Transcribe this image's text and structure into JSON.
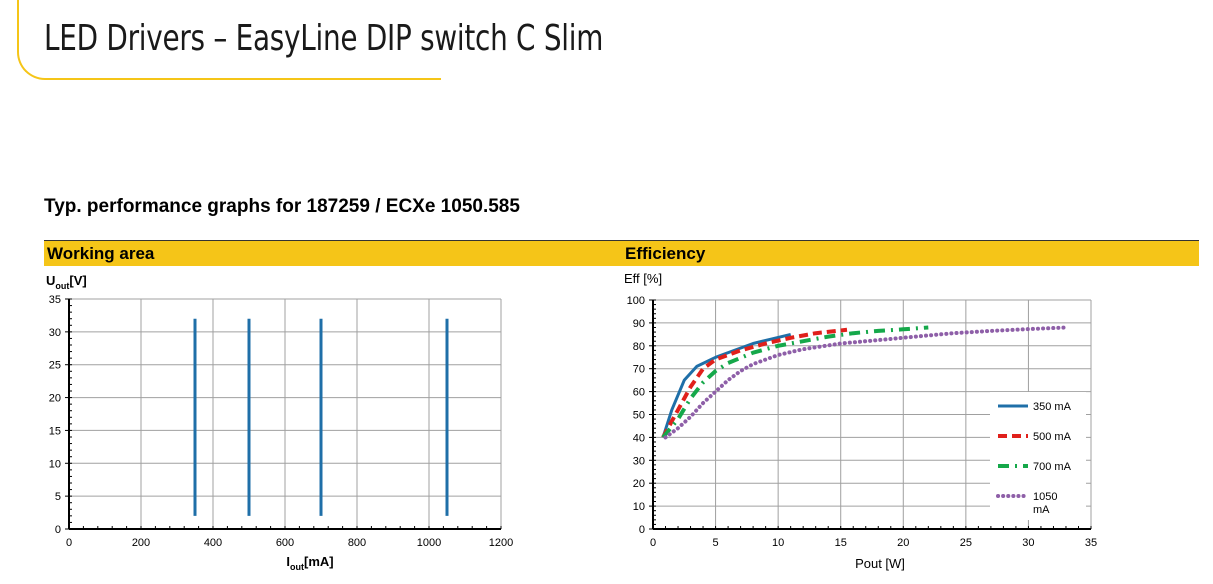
{
  "page": {
    "title": "LED Drivers – EasyLine DIP switch C Slim",
    "section_heading": "Typ. performance graphs for 187259 / ECXe 1050.585"
  },
  "colors": {
    "accent": "#f5c518",
    "series_350": "#1f6fa8",
    "series_500": "#e0201b",
    "series_700": "#15a84a",
    "series_1050": "#8e5fa8",
    "grid": "#a0a0a0"
  },
  "chart_data": [
    {
      "type": "bar",
      "title": "Working area",
      "ylabel_main": "U",
      "ylabel_sub": "out",
      "ylabel_unit": "[V]",
      "xlabel_main": "I",
      "xlabel_sub": "out",
      "xlabel_unit": "[mA]",
      "xlim": [
        0,
        1200
      ],
      "ylim": [
        0,
        35
      ],
      "xticks": [
        0,
        200,
        400,
        600,
        800,
        1000,
        1200
      ],
      "xtick_labels": [
        "0",
        "200",
        "400",
        "600",
        "800",
        "1000",
        "1200"
      ],
      "yticks": [
        0,
        5,
        10,
        15,
        20,
        25,
        30,
        35
      ],
      "ytick_labels": [
        "0",
        "5",
        "10",
        "15",
        "20",
        "25",
        "30",
        "35"
      ],
      "grid": true,
      "segments": [
        {
          "x": 350,
          "y_min": 2,
          "y_max": 32
        },
        {
          "x": 500,
          "y_min": 2,
          "y_max": 32
        },
        {
          "x": 700,
          "y_min": 2,
          "y_max": 32
        },
        {
          "x": 1050,
          "y_min": 2,
          "y_max": 32
        }
      ]
    },
    {
      "type": "line",
      "title": "Efficiency",
      "ylabel": "Eff [%]",
      "xlabel": "Pout [W]",
      "xlim": [
        0,
        35
      ],
      "ylim": [
        0,
        100
      ],
      "xticks": [
        0,
        5,
        10,
        15,
        20,
        25,
        30,
        35
      ],
      "xtick_labels": [
        "0",
        "5",
        "10",
        "15",
        "20",
        "25",
        "30",
        "35"
      ],
      "yticks": [
        0,
        10,
        20,
        30,
        40,
        50,
        60,
        70,
        80,
        90,
        100
      ],
      "ytick_labels": [
        "0",
        "10",
        "20",
        "30",
        "40",
        "50",
        "60",
        "70",
        "80",
        "90",
        "100"
      ],
      "grid": true,
      "legend_position": "right",
      "series": [
        {
          "name": "350 mA",
          "style": "solid",
          "x": [
            0.8,
            1.5,
            2.5,
            3.5,
            5,
            6.5,
            8,
            9.5,
            11
          ],
          "y": [
            40,
            52,
            65,
            71,
            75,
            78,
            81,
            83,
            85
          ]
        },
        {
          "name": "500 mA",
          "style": "dashed",
          "x": [
            0.8,
            2,
            3,
            4,
            5,
            7,
            9,
            11,
            13,
            15.5
          ],
          "y": [
            40,
            52,
            62,
            70,
            74,
            78,
            81,
            83.5,
            85.5,
            87
          ]
        },
        {
          "name": "700 mA",
          "style": "dashdot",
          "x": [
            0.8,
            2,
            3,
            4,
            5,
            6,
            8,
            10,
            12,
            14,
            16,
            18,
            20,
            22
          ],
          "y": [
            40,
            48,
            57,
            64,
            69,
            72.5,
            77,
            80,
            82,
            84,
            85.5,
            86.5,
            87.2,
            88
          ]
        },
        {
          "name": "1050 mA",
          "style": "dotted",
          "x": [
            1,
            2,
            3,
            4,
            5,
            6,
            7,
            8,
            10,
            12,
            15,
            18,
            21,
            24,
            27,
            30,
            33
          ],
          "y": [
            40,
            44,
            49,
            55,
            60,
            65,
            69,
            72,
            76,
            78.5,
            81,
            82.5,
            84,
            85.5,
            86.5,
            87.3,
            88
          ]
        }
      ]
    }
  ]
}
